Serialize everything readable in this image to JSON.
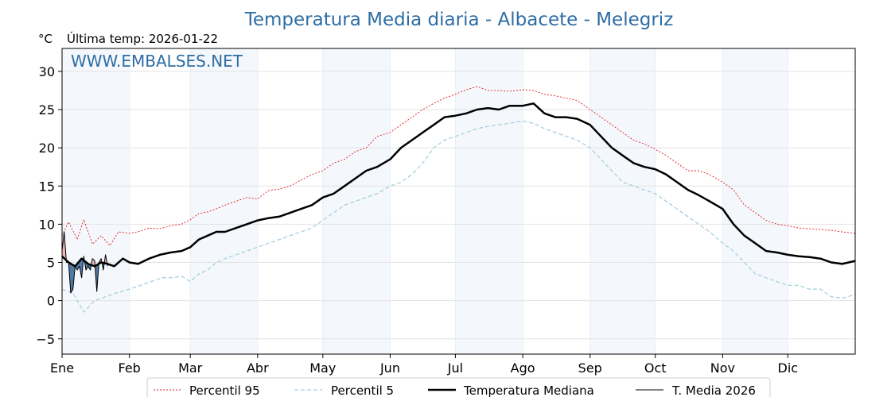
{
  "chart_data": {
    "type": "line",
    "title": "Temperatura Media diaria - Albacete - Melegriz",
    "unit_label": "°C",
    "last_temp_label": "Última temp: 2026-01-22",
    "watermark": "WWW.EMBALSES.NET",
    "xlabel": "",
    "ylabel": "",
    "x_range_days": [
      0,
      365
    ],
    "ylim": [
      -7,
      33
    ],
    "yticks": [
      30,
      25,
      20,
      15,
      10,
      5,
      0,
      -5
    ],
    "ytick_labels": [
      "30",
      "25",
      "20",
      "15",
      "10",
      "5",
      "0",
      "−5"
    ],
    "months": [
      "Ene",
      "Feb",
      "Mar",
      "Abr",
      "May",
      "Jun",
      "Jul",
      "Ago",
      "Sep",
      "Oct",
      "Nov",
      "Dic"
    ],
    "month_start_days": [
      0,
      31,
      59,
      90,
      120,
      151,
      181,
      212,
      243,
      273,
      304,
      334
    ],
    "grid": true,
    "legend_position": "bottom-center",
    "colors": {
      "p95": "#e41a1c",
      "p5": "#a6cfe0",
      "median": "#000000",
      "current": "#000000",
      "above_fill": "#f2b8b8",
      "below_fill": "#4f7aa6",
      "band": "#f4f8fc"
    },
    "series": [
      {
        "name": "Percentil 95",
        "key": "p95",
        "days": [
          0,
          3,
          7,
          10,
          14,
          18,
          22,
          26,
          31,
          35,
          40,
          45,
          50,
          55,
          59,
          63,
          67,
          71,
          75,
          80,
          85,
          90,
          95,
          100,
          105,
          110,
          115,
          120,
          125,
          130,
          135,
          140,
          145,
          151,
          156,
          161,
          166,
          171,
          176,
          181,
          186,
          191,
          196,
          201,
          206,
          212,
          217,
          222,
          227,
          232,
          237,
          243,
          248,
          253,
          258,
          263,
          268,
          273,
          278,
          283,
          288,
          293,
          298,
          304,
          309,
          314,
          319,
          324,
          329,
          334,
          339,
          344,
          349,
          354,
          359,
          365
        ],
        "values": [
          8.5,
          10.3,
          8.0,
          10.6,
          7.4,
          8.5,
          7.2,
          9.0,
          8.8,
          9.0,
          9.5,
          9.4,
          9.8,
          10.0,
          10.6,
          11.4,
          11.6,
          12.0,
          12.5,
          13.0,
          13.5,
          13.3,
          14.4,
          14.6,
          15.0,
          15.8,
          16.5,
          17.0,
          18.0,
          18.5,
          19.5,
          20.0,
          21.5,
          22.0,
          23.0,
          24.0,
          25.0,
          25.8,
          26.5,
          27.0,
          27.6,
          28.0,
          27.5,
          27.5,
          27.4,
          27.6,
          27.5,
          27.0,
          26.8,
          26.5,
          26.2,
          25.0,
          24.0,
          23.0,
          22.0,
          21.0,
          20.5,
          19.8,
          19.0,
          18.0,
          17.0,
          17.0,
          16.5,
          15.5,
          14.5,
          12.5,
          11.5,
          10.5,
          10.0,
          9.8,
          9.5,
          9.4,
          9.3,
          9.2,
          9.0,
          8.8
        ]
      },
      {
        "name": "Percentil 5",
        "key": "p5",
        "days": [
          0,
          5,
          10,
          15,
          20,
          25,
          31,
          36,
          41,
          46,
          51,
          55,
          59,
          63,
          67,
          71,
          75,
          80,
          85,
          90,
          95,
          100,
          105,
          110,
          115,
          120,
          125,
          130,
          135,
          140,
          145,
          151,
          156,
          161,
          166,
          171,
          176,
          181,
          186,
          191,
          196,
          201,
          206,
          212,
          217,
          222,
          227,
          232,
          237,
          243,
          248,
          253,
          258,
          263,
          268,
          273,
          278,
          283,
          288,
          293,
          298,
          304,
          309,
          314,
          319,
          324,
          329,
          334,
          339,
          344,
          349,
          354,
          359,
          365
        ],
        "values": [
          1.5,
          1.0,
          -1.5,
          0.0,
          0.5,
          1.0,
          1.5,
          2.0,
          2.5,
          3.0,
          3.0,
          3.2,
          2.5,
          3.5,
          4.0,
          5.0,
          5.5,
          6.0,
          6.5,
          7.0,
          7.5,
          8.0,
          8.5,
          9.0,
          9.5,
          10.5,
          11.5,
          12.5,
          13.0,
          13.5,
          14.0,
          15.0,
          15.5,
          16.5,
          18.0,
          20.0,
          21.0,
          21.5,
          22.0,
          22.5,
          22.8,
          23.0,
          23.2,
          23.5,
          23.2,
          22.5,
          22.0,
          21.5,
          21.0,
          20.0,
          18.5,
          17.0,
          15.5,
          15.0,
          14.5,
          14.0,
          13.0,
          12.0,
          11.0,
          10.0,
          9.0,
          7.5,
          6.5,
          5.0,
          3.5,
          3.0,
          2.5,
          2.0,
          2.0,
          1.5,
          1.5,
          0.5,
          0.3,
          0.8
        ]
      },
      {
        "name": "Temperatura Mediana",
        "key": "median",
        "days": [
          0,
          3,
          6,
          9,
          12,
          15,
          18,
          21,
          24,
          28,
          31,
          35,
          40,
          45,
          50,
          55,
          59,
          63,
          67,
          71,
          75,
          80,
          85,
          90,
          95,
          100,
          105,
          110,
          115,
          120,
          125,
          130,
          135,
          140,
          145,
          151,
          156,
          161,
          166,
          171,
          176,
          181,
          186,
          191,
          196,
          201,
          206,
          212,
          217,
          222,
          227,
          232,
          237,
          243,
          248,
          253,
          258,
          263,
          268,
          273,
          278,
          283,
          288,
          293,
          298,
          304,
          309,
          314,
          319,
          324,
          329,
          334,
          339,
          344,
          349,
          354,
          359,
          365
        ],
        "values": [
          5.8,
          5.0,
          4.5,
          5.5,
          4.8,
          4.5,
          5.0,
          4.8,
          4.5,
          5.5,
          5.0,
          4.8,
          5.5,
          6.0,
          6.3,
          6.5,
          7.0,
          8.0,
          8.5,
          9.0,
          9.0,
          9.5,
          10.0,
          10.5,
          10.8,
          11.0,
          11.5,
          12.0,
          12.5,
          13.5,
          14.0,
          15.0,
          16.0,
          17.0,
          17.5,
          18.5,
          20.0,
          21.0,
          22.0,
          23.0,
          24.0,
          24.2,
          24.5,
          25.0,
          25.2,
          25.0,
          25.5,
          25.5,
          25.8,
          24.5,
          24.0,
          24.0,
          23.8,
          23.0,
          21.5,
          20.0,
          19.0,
          18.0,
          17.5,
          17.2,
          16.5,
          15.5,
          14.5,
          13.8,
          13.0,
          12.0,
          10.0,
          8.5,
          7.5,
          6.5,
          6.3,
          6.0,
          5.8,
          5.7,
          5.5,
          5.0,
          4.8,
          5.2
        ]
      },
      {
        "name": "T. Media 2026",
        "key": "current",
        "days": [
          0,
          1,
          2,
          3,
          4,
          5,
          6,
          7,
          8,
          9,
          10,
          11,
          12,
          13,
          14,
          15,
          16,
          17,
          18,
          19,
          20,
          21
        ],
        "values": [
          6.5,
          9.0,
          5.0,
          5.0,
          1.0,
          1.5,
          4.5,
          4.0,
          4.5,
          3.0,
          5.8,
          4.0,
          4.5,
          4.0,
          5.5,
          5.2,
          1.2,
          5.0,
          5.5,
          4.0,
          6.0,
          4.5
        ]
      }
    ]
  }
}
